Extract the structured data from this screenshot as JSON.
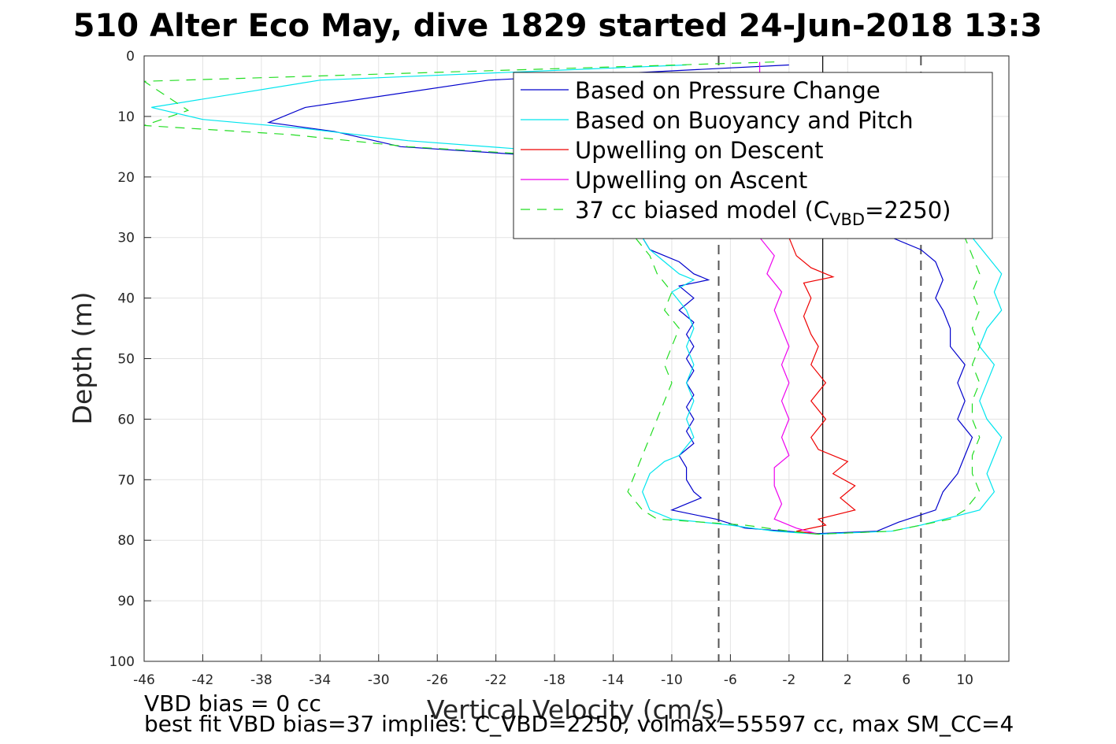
{
  "chart_data": {
    "type": "line",
    "title": "510 Alter Eco May, dive 1829 started 24-Jun-2018 13:3",
    "xlabel": "Vertical Velocity (cm/s)",
    "ylabel": "Depth (m)",
    "xlim": [
      -46,
      13
    ],
    "ylim": [
      0,
      100
    ],
    "y_reversed": true,
    "grid": true,
    "x_ticks": [
      "-46",
      "-42",
      "-38",
      "-34",
      "-30",
      "-26",
      "-22",
      "-18",
      "-14",
      "-10",
      "-6",
      "-2",
      "2",
      "6",
      "10"
    ],
    "y_ticks": [
      "0",
      "10",
      "20",
      "30",
      "40",
      "50",
      "60",
      "70",
      "80",
      "90",
      "100"
    ],
    "legend_position": "top-right",
    "legend": [
      {
        "label": "Based on Pressure Change",
        "color": "#0000cc",
        "dash": "solid"
      },
      {
        "label": "Based on Buoyancy and Pitch",
        "color": "#00e5ee",
        "dash": "solid"
      },
      {
        "label": "Upwelling on Descent",
        "color": "#ee0000",
        "dash": "solid"
      },
      {
        "label": "Upwelling on Ascent",
        "color": "#ee00ee",
        "dash": "solid"
      },
      {
        "label": "37 cc biased model (C",
        "sub": "VBD",
        "suffix": "=2250)",
        "color": "#22dd22",
        "dash": "dashed"
      }
    ],
    "reference_lines": {
      "zero_line_x": 0.3,
      "dashed_lines_x": [
        -6.8,
        7.0
      ]
    },
    "series": [
      {
        "name": "Based on Pressure Change",
        "color": "#0000cc",
        "dash": "solid",
        "points": [
          [
            -2,
            1.5
          ],
          [
            -22.5,
            4
          ],
          [
            -35,
            8.5
          ],
          [
            -37.5,
            11
          ],
          [
            -33,
            12.5
          ],
          [
            -28.5,
            15
          ],
          [
            -19,
            16.5
          ],
          [
            -12,
            30
          ],
          [
            -11.5,
            32
          ],
          [
            -10.5,
            33
          ],
          [
            -9.5,
            34
          ],
          [
            -8.5,
            36
          ],
          [
            -7.5,
            37
          ],
          [
            -9.5,
            38
          ],
          [
            -8.5,
            40
          ],
          [
            -9.5,
            42
          ],
          [
            -8.5,
            44
          ],
          [
            -9,
            46
          ],
          [
            -8.5,
            48
          ],
          [
            -9,
            50
          ],
          [
            -8.5,
            52
          ],
          [
            -9,
            54
          ],
          [
            -8.5,
            56
          ],
          [
            -9,
            58
          ],
          [
            -8.5,
            60
          ],
          [
            -9,
            62
          ],
          [
            -8.5,
            64
          ],
          [
            -9.5,
            66
          ],
          [
            -9,
            68
          ],
          [
            -9,
            70
          ],
          [
            -8.5,
            72
          ],
          [
            -8,
            73
          ],
          [
            -9,
            74
          ],
          [
            -10,
            75
          ],
          [
            -7,
            76.5
          ],
          [
            -5,
            78
          ],
          [
            0,
            78.9
          ],
          [
            4,
            78.5
          ],
          [
            5.5,
            77
          ],
          [
            8,
            75
          ],
          [
            8.5,
            72
          ],
          [
            9.5,
            69
          ],
          [
            10,
            66
          ],
          [
            10.5,
            63
          ],
          [
            9.5,
            60
          ],
          [
            10,
            57
          ],
          [
            9.5,
            54
          ],
          [
            10,
            51
          ],
          [
            9,
            48
          ],
          [
            9,
            45
          ],
          [
            8.5,
            42
          ],
          [
            8,
            40
          ],
          [
            8.5,
            37
          ],
          [
            8,
            34
          ],
          [
            7,
            32
          ],
          [
            5,
            30
          ]
        ]
      },
      {
        "name": "Based on Buoyancy and Pitch",
        "color": "#00e5ee",
        "dash": "solid",
        "points": [
          [
            -9,
            1.5
          ],
          [
            -34,
            4
          ],
          [
            -45.5,
            8.5
          ],
          [
            -42,
            10.5
          ],
          [
            -35,
            12
          ],
          [
            -28,
            14
          ],
          [
            -17,
            16
          ],
          [
            -12,
            30
          ],
          [
            -11.5,
            32
          ],
          [
            -10.5,
            34
          ],
          [
            -9.5,
            36
          ],
          [
            -8.5,
            37
          ],
          [
            -10,
            39
          ],
          [
            -9,
            42
          ],
          [
            -8.5,
            45
          ],
          [
            -9,
            48
          ],
          [
            -8.5,
            51
          ],
          [
            -9,
            54
          ],
          [
            -8.5,
            57
          ],
          [
            -9,
            60
          ],
          [
            -8.5,
            63
          ],
          [
            -9.5,
            66
          ],
          [
            -10.5,
            67
          ],
          [
            -11.5,
            69
          ],
          [
            -12,
            72
          ],
          [
            -11.5,
            75
          ],
          [
            -10,
            76.5
          ],
          [
            -6,
            77.5
          ],
          [
            -3,
            78.5
          ],
          [
            0,
            79
          ],
          [
            5,
            78.5
          ],
          [
            7,
            77.5
          ],
          [
            11,
            75
          ],
          [
            12,
            72
          ],
          [
            11.5,
            69
          ],
          [
            12,
            66
          ],
          [
            12.5,
            63
          ],
          [
            11.5,
            60
          ],
          [
            11,
            57
          ],
          [
            11.5,
            54
          ],
          [
            12,
            51
          ],
          [
            11,
            48
          ],
          [
            11.5,
            45
          ],
          [
            12.5,
            42
          ],
          [
            12,
            39
          ],
          [
            12.5,
            36
          ],
          [
            11.5,
            33
          ],
          [
            10.5,
            30
          ]
        ]
      },
      {
        "name": "Upwelling on Descent",
        "color": "#ee0000",
        "dash": "solid",
        "points": [
          [
            -2,
            30
          ],
          [
            -1.5,
            33
          ],
          [
            -0.5,
            35
          ],
          [
            1,
            36.5
          ],
          [
            -1,
            37.5
          ],
          [
            -0.5,
            40
          ],
          [
            -1,
            43
          ],
          [
            -0.5,
            46
          ],
          [
            0,
            48
          ],
          [
            -0.5,
            51
          ],
          [
            0.5,
            54
          ],
          [
            -0.5,
            57
          ],
          [
            0.5,
            60
          ],
          [
            -0.5,
            63
          ],
          [
            0,
            65
          ],
          [
            2,
            67
          ],
          [
            1,
            69
          ],
          [
            2.5,
            71
          ],
          [
            1.5,
            73
          ],
          [
            2.5,
            75
          ],
          [
            0,
            76.5
          ],
          [
            0.5,
            77.5
          ],
          [
            -1.5,
            78.5
          ],
          [
            0,
            79
          ]
        ]
      },
      {
        "name": "Upwelling on Ascent",
        "color": "#ee00ee",
        "dash": "solid",
        "points": [
          [
            -4,
            1
          ],
          [
            -4,
            30
          ],
          [
            -3,
            33
          ],
          [
            -3.5,
            36
          ],
          [
            -2.5,
            39
          ],
          [
            -3,
            42
          ],
          [
            -2.5,
            45
          ],
          [
            -2,
            48
          ],
          [
            -2.5,
            51
          ],
          [
            -2,
            54
          ],
          [
            -2.5,
            57
          ],
          [
            -2,
            60
          ],
          [
            -2.5,
            63
          ],
          [
            -2,
            66
          ],
          [
            -3,
            68
          ],
          [
            -3,
            71
          ],
          [
            -2.5,
            74
          ],
          [
            -3,
            76.5
          ],
          [
            -1.5,
            78
          ],
          [
            0,
            79
          ]
        ]
      },
      {
        "name": "37 cc biased model (CVBD=2250)",
        "color": "#22dd22",
        "dash": "dashed",
        "points": [
          [
            -3,
            1
          ],
          [
            -46,
            4.2
          ],
          [
            -43,
            9
          ],
          [
            -46,
            11.5
          ],
          [
            -36,
            13
          ],
          [
            -28,
            15
          ],
          [
            -18,
            16.5
          ],
          [
            -12.5,
            30
          ],
          [
            -11.5,
            33
          ],
          [
            -11,
            36
          ],
          [
            -10,
            39
          ],
          [
            -10.5,
            42
          ],
          [
            -9.5,
            45
          ],
          [
            -10,
            48
          ],
          [
            -10.5,
            51
          ],
          [
            -10,
            54
          ],
          [
            -10.5,
            57
          ],
          [
            -11,
            60
          ],
          [
            -11.5,
            63
          ],
          [
            -12,
            66
          ],
          [
            -12.5,
            69
          ],
          [
            -13,
            72
          ],
          [
            -12,
            75
          ],
          [
            -11,
            76.5
          ],
          [
            -5,
            77.5
          ],
          [
            -2,
            78.5
          ],
          [
            0,
            79
          ],
          [
            5,
            78.5
          ],
          [
            9,
            76.5
          ],
          [
            10,
            75
          ],
          [
            11,
            72
          ],
          [
            10.5,
            69
          ],
          [
            10.5,
            66
          ],
          [
            11,
            63
          ],
          [
            10.5,
            60
          ],
          [
            10.5,
            57
          ],
          [
            11,
            54
          ],
          [
            10.5,
            51
          ],
          [
            11,
            48
          ],
          [
            10.5,
            45
          ],
          [
            11,
            42
          ],
          [
            10.5,
            39
          ],
          [
            11,
            36
          ],
          [
            10.5,
            33
          ],
          [
            10,
            30
          ]
        ]
      }
    ]
  },
  "notes": {
    "line1": "VBD bias = 0 cc",
    "line2": "best fit VBD bias=37 implies: C_VBD=2250, volmax=55597 cc, max SM_CC=4"
  }
}
